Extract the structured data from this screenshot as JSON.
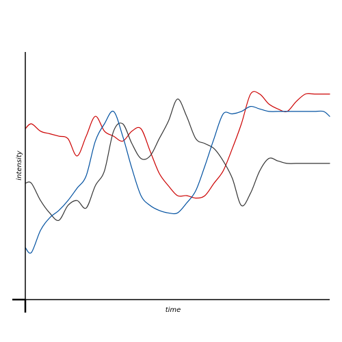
{
  "chart_data": {
    "type": "line",
    "title": "",
    "xlabel": "time",
    "ylabel": "intensity",
    "xlim": [
      0,
      1
    ],
    "ylim": [
      0,
      1
    ],
    "grid": false,
    "legend": "none",
    "x": [
      0.0,
      0.02,
      0.05,
      0.08,
      0.11,
      0.14,
      0.17,
      0.2,
      0.23,
      0.26,
      0.29,
      0.32,
      0.35,
      0.38,
      0.41,
      0.44,
      0.47,
      0.5,
      0.53,
      0.56,
      0.59,
      0.62,
      0.65,
      0.68,
      0.71,
      0.74,
      0.77,
      0.8,
      0.83,
      0.86,
      0.89,
      0.92,
      0.95,
      0.98,
      1.0
    ],
    "series": [
      {
        "color": "#cc0000",
        "values": [
          0.69,
          0.71,
          0.68,
          0.67,
          0.66,
          0.65,
          0.58,
          0.66,
          0.74,
          0.68,
          0.66,
          0.64,
          0.68,
          0.69,
          0.6,
          0.51,
          0.46,
          0.42,
          0.42,
          0.41,
          0.42,
          0.47,
          0.52,
          0.61,
          0.71,
          0.83,
          0.83,
          0.79,
          0.77,
          0.76,
          0.8,
          0.83,
          0.83,
          0.83,
          0.83
        ]
      },
      {
        "color": "#333333",
        "values": [
          0.47,
          0.47,
          0.4,
          0.35,
          0.32,
          0.38,
          0.4,
          0.37,
          0.46,
          0.52,
          0.68,
          0.71,
          0.63,
          0.57,
          0.58,
          0.65,
          0.72,
          0.81,
          0.74,
          0.65,
          0.63,
          0.61,
          0.56,
          0.49,
          0.38,
          0.43,
          0.52,
          0.57,
          0.56,
          0.55,
          0.55,
          0.55,
          0.55,
          0.55,
          0.55
        ]
      },
      {
        "color": "#0050a0",
        "values": [
          0.21,
          0.19,
          0.28,
          0.33,
          0.36,
          0.4,
          0.45,
          0.5,
          0.64,
          0.71,
          0.76,
          0.66,
          0.53,
          0.42,
          0.38,
          0.36,
          0.35,
          0.35,
          0.39,
          0.44,
          0.54,
          0.65,
          0.75,
          0.75,
          0.76,
          0.78,
          0.77,
          0.76,
          0.76,
          0.76,
          0.76,
          0.76,
          0.76,
          0.76,
          0.74
        ]
      }
    ]
  }
}
